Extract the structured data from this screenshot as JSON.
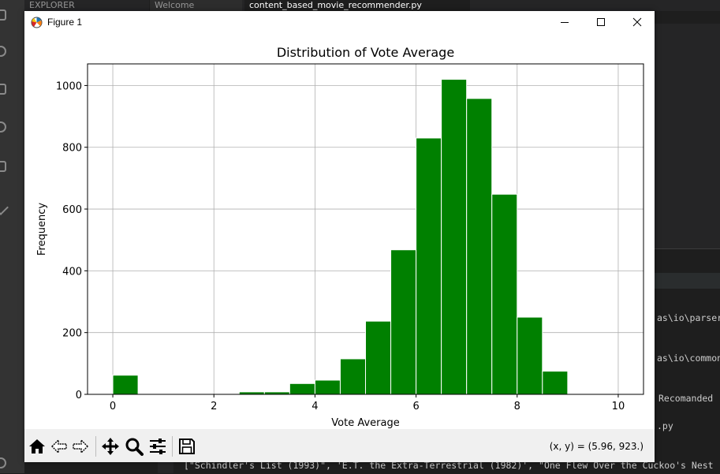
{
  "ide": {
    "explorer_label": "EXPLORER",
    "tabs": [
      "Welcome",
      "content_based_movie_recommender.py"
    ],
    "terminal_lines": [
      "as\\io\\parsers",
      "as\\io\\common",
      "Recomanded ",
      ".py"
    ],
    "output_line": "[\"Schindler's List (1993)\", 'E.T. the Extra-Terrestrial (1982)', \"One Flew Over the Cuckoo's Nest"
  },
  "window": {
    "title": "Figure 1",
    "minimize_icon": "minimize-icon",
    "maximize_icon": "maximize-icon",
    "close_icon": "close-icon"
  },
  "toolbar": {
    "buttons": [
      "home-icon",
      "back-icon",
      "forward-icon",
      "pan-icon",
      "zoom-icon",
      "configure-subplots-icon",
      "save-icon"
    ],
    "coords": "(x, y) = (5.96, 923.)"
  },
  "colors": {
    "bar_fill": "#008000",
    "bar_edge": "#ffffff",
    "grid": "#b0b0b0"
  },
  "chart_data": {
    "type": "bar",
    "title": "Distribution of Vote Average",
    "xlabel": "Vote Average",
    "ylabel": "Frequency",
    "bin_edges": [
      0,
      0.5,
      1,
      1.5,
      2,
      2.5,
      3,
      3.5,
      4,
      4.5,
      5,
      5.5,
      6,
      6.5,
      7,
      7.5,
      8,
      8.5,
      9,
      9.5,
      10
    ],
    "values": [
      62,
      0,
      0,
      0,
      0,
      8,
      8,
      35,
      46,
      115,
      237,
      468,
      830,
      1020,
      958,
      648,
      250,
      75,
      0,
      0,
      3
    ],
    "xlim": [
      -0.5,
      10.5
    ],
    "ylim": [
      0,
      1070
    ],
    "xticks": [
      0,
      2,
      4,
      6,
      8,
      10
    ],
    "yticks": [
      0,
      200,
      400,
      600,
      800,
      1000
    ],
    "grid": true
  }
}
